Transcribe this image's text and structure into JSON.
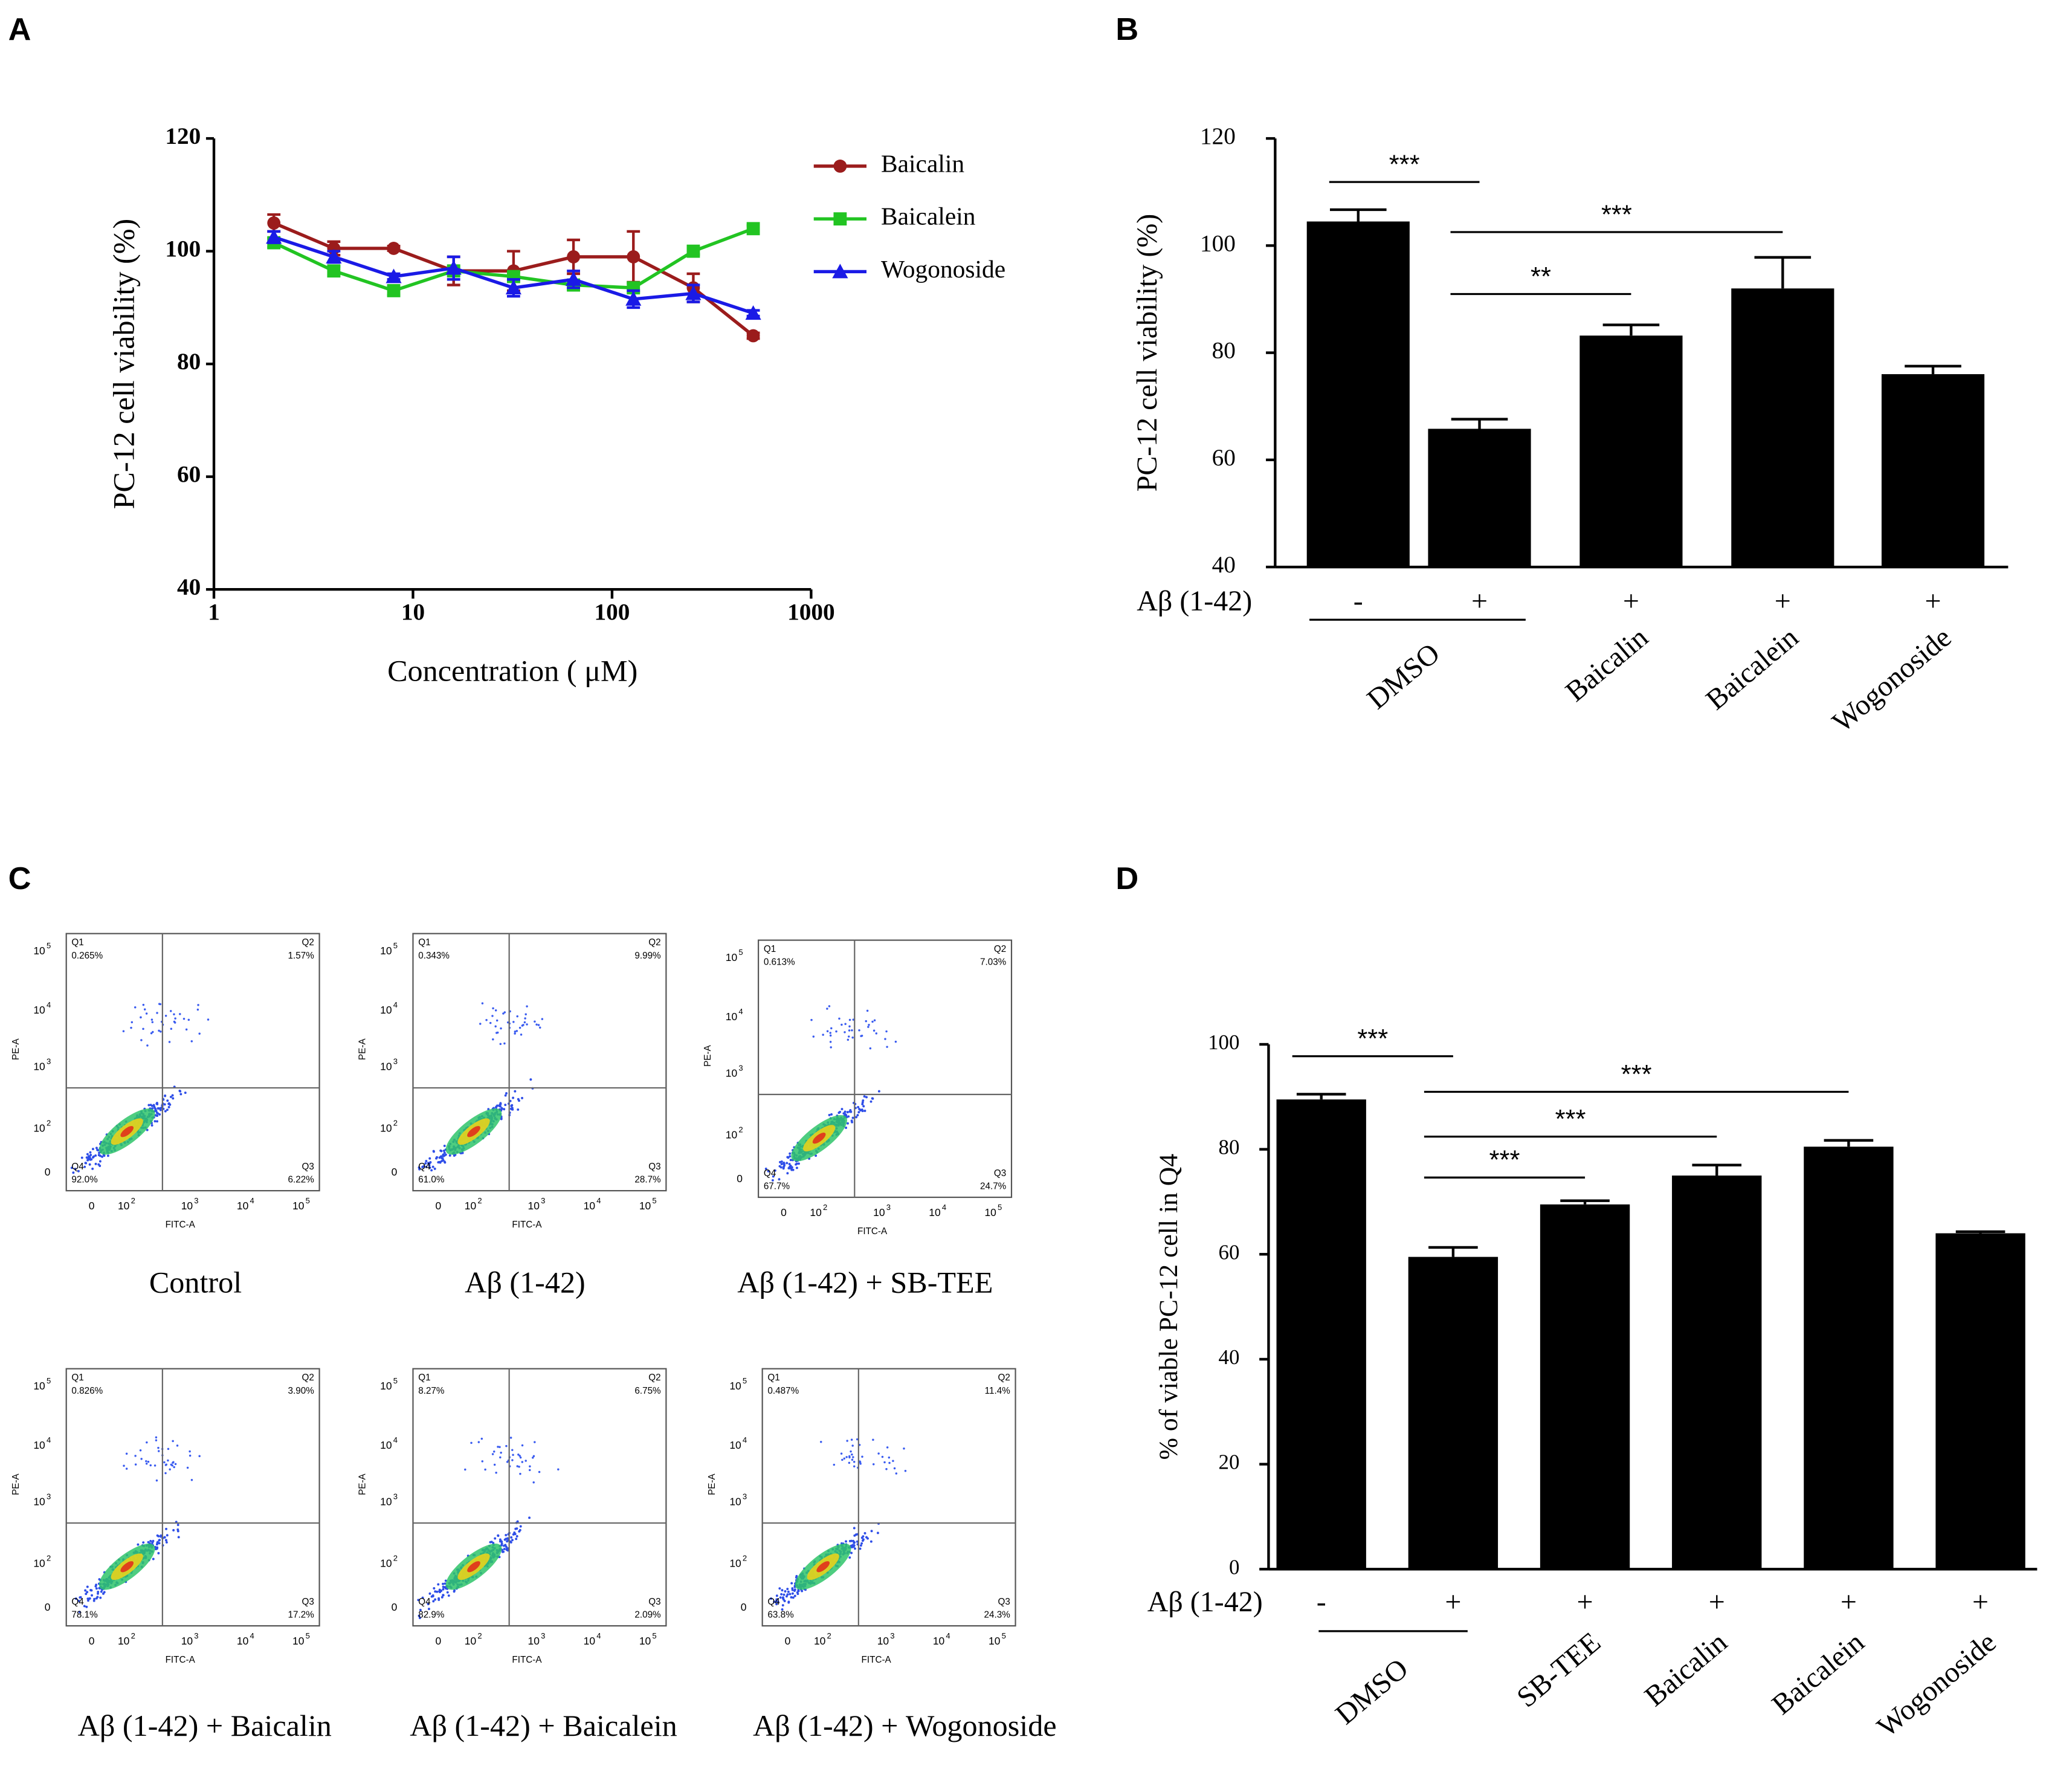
{
  "panel_labels": [
    "A",
    "B",
    "C",
    "D"
  ],
  "chart_data": [
    {
      "type": "line",
      "xlabel": "Concentration ( μM)",
      "ylabel": "PC-12 cell viability (%)",
      "x": [
        2,
        4,
        8,
        16,
        32,
        64,
        128,
        256,
        512
      ],
      "xscale": "log",
      "xlim": [
        1,
        1000
      ],
      "xticks": [
        1,
        10,
        100,
        1000
      ],
      "ylim": [
        40,
        120
      ],
      "yticks": [
        40,
        60,
        80,
        100,
        120
      ],
      "legend": "right",
      "series": [
        {
          "name": "Baicalin",
          "color": "#9b1c1c",
          "marker": "circle",
          "values": [
            105,
            100.5,
            100.5,
            96.5,
            96.5,
            99,
            99,
            93.5,
            85
          ],
          "errors": [
            1.5,
            1.2,
            0.4,
            2.5,
            3.5,
            3,
            4.5,
            2.5,
            0.5
          ]
        },
        {
          "name": "Baicalein",
          "color": "#22c422",
          "marker": "square",
          "values": [
            101.5,
            96.5,
            93,
            96.5,
            95.5,
            94,
            93.5,
            100,
            104
          ],
          "errors": [
            0.8,
            0.8,
            0.8,
            0.8,
            0.8,
            0.8,
            0.8,
            0.6,
            0.6
          ]
        },
        {
          "name": "Wogonoside",
          "color": "#1a1ae6",
          "marker": "triangle",
          "values": [
            102.5,
            99,
            95.5,
            97,
            93.5,
            95,
            91.5,
            92.5,
            89
          ],
          "errors": [
            1,
            1,
            0.5,
            2,
            1.5,
            1.5,
            1.5,
            1.5,
            0.5
          ]
        }
      ]
    },
    {
      "type": "bar",
      "ylabel": "PC-12 cell viability (%)",
      "row_label": "Aβ (1-42)",
      "categories": [
        "-",
        "+",
        "+",
        "+",
        "+"
      ],
      "groups": [
        "DMSO",
        "Baicalin",
        "Baicalein",
        "Wogonoside"
      ],
      "values": [
        104.5,
        65.8,
        83.2,
        92,
        76
      ],
      "errors": [
        2.2,
        1.8,
        2,
        5.8,
        1.5
      ],
      "color": "#000000",
      "ylim": [
        40,
        120
      ],
      "yticks": [
        40,
        60,
        80,
        100,
        120
      ],
      "annotations": [
        "***",
        "***",
        "**"
      ]
    },
    {
      "type": "bar",
      "ylabel": "% of viable PC-12 cell in Q4",
      "row_label": "Aβ (1-42)",
      "categories": [
        "-",
        "+",
        "+",
        "+",
        "+",
        "+"
      ],
      "groups": [
        "DMSO",
        "SB-TEE",
        "Baicalin",
        "Baicalein",
        "Wogonoside"
      ],
      "values": [
        89.5,
        59.5,
        69.5,
        75,
        80.5,
        64
      ],
      "errors": [
        1,
        1.8,
        0.7,
        2,
        1.2,
        0.3
      ],
      "color": "#000000",
      "ylim": [
        0,
        100
      ],
      "yticks": [
        0,
        20,
        40,
        60,
        80,
        100
      ],
      "annotations": [
        "***",
        "***",
        "***",
        "***"
      ]
    }
  ],
  "flow_cytometry": {
    "x_axis": "FITC-A",
    "y_axis": "PE-A",
    "zero": "0",
    "tick_base": "10",
    "tick_exponents": [
      "2",
      "3",
      "4",
      "5"
    ],
    "quadrants": [
      "Q1",
      "Q2",
      "Q3",
      "Q4"
    ],
    "plots": [
      {
        "caption": "Control",
        "percents": [
          "0.265%",
          "1.57%",
          "6.22%",
          "92.0%"
        ]
      },
      {
        "caption": "Aβ (1-42)",
        "percents": [
          "0.343%",
          "9.99%",
          "28.7%",
          "61.0%"
        ]
      },
      {
        "caption": "Aβ (1-42) + SB-TEE",
        "percents": [
          "0.613%",
          "7.03%",
          "24.7%",
          "67.7%"
        ]
      },
      {
        "caption": "Aβ (1-42) + Baicalin",
        "percents": [
          "0.826%",
          "3.90%",
          "17.2%",
          "78.1%"
        ]
      },
      {
        "caption": "Aβ (1-42) + Baicalein",
        "percents": [
          "8.27%",
          "6.75%",
          "2.09%",
          "82.9%"
        ]
      },
      {
        "caption": "Aβ (1-42) + Wogonoside",
        "percents": [
          "0.487%",
          "11.4%",
          "24.3%",
          "63.8%"
        ]
      }
    ]
  }
}
